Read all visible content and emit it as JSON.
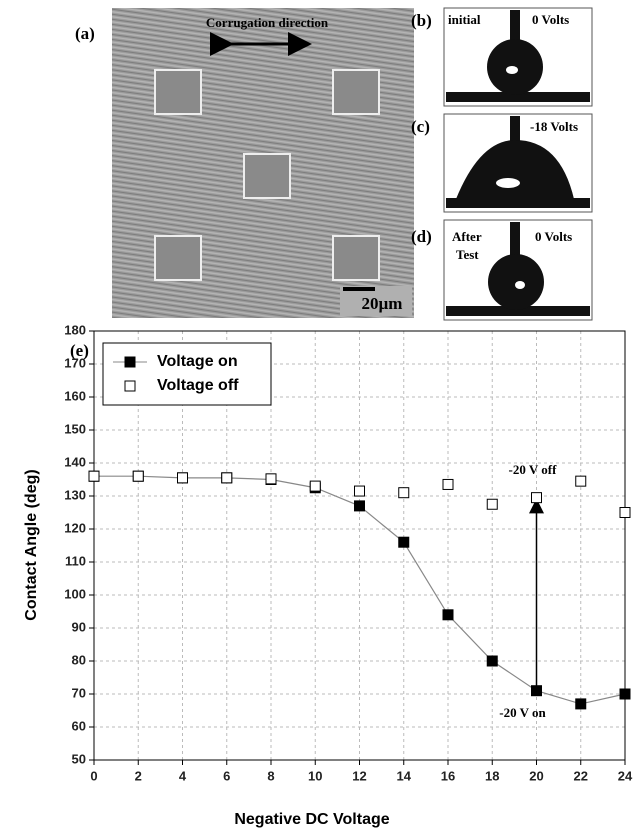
{
  "panels": {
    "a": {
      "label": "(a)",
      "annotation": "Corrugation direction",
      "scale_bar": "20µm"
    },
    "b": {
      "label": "(b)",
      "left": "initial",
      "right": "0 Volts"
    },
    "c": {
      "label": "(c)",
      "right": "-18 Volts"
    },
    "d": {
      "label": "(d)",
      "left_lines": [
        "After",
        "Test"
      ],
      "right": "0 Volts"
    }
  },
  "chart_data": {
    "type": "line",
    "label": "(e)",
    "xlabel": "Negative DC Voltage",
    "ylabel": "Contact Angle (deg)",
    "x": [
      0,
      2,
      4,
      6,
      8,
      10,
      12,
      14,
      16,
      18,
      20,
      22,
      24
    ],
    "series": [
      {
        "name": "Voltage on",
        "color": "#000000",
        "line": true,
        "marker": "filled",
        "values": [
          136,
          136,
          135.5,
          135.5,
          135,
          132.5,
          127,
          116,
          94,
          80,
          71,
          67,
          70
        ]
      },
      {
        "name": "Voltage off",
        "color": "#000000",
        "line": false,
        "marker": "open",
        "values": [
          136,
          136,
          135.5,
          135.5,
          135.2,
          133,
          131.5,
          131,
          133.5,
          127.5,
          129.5,
          134.5,
          125
        ]
      }
    ],
    "annotations": [
      "-20 V off",
      "-20 V on"
    ],
    "xlim": [
      0,
      24
    ],
    "xticks": [
      0,
      2,
      4,
      6,
      8,
      10,
      12,
      14,
      16,
      18,
      20,
      22,
      24
    ],
    "ylim": [
      50,
      180
    ],
    "yticks": [
      50,
      60,
      70,
      80,
      90,
      100,
      110,
      120,
      130,
      140,
      150,
      160,
      170,
      180
    ],
    "grid": true,
    "legend": "upper left"
  }
}
